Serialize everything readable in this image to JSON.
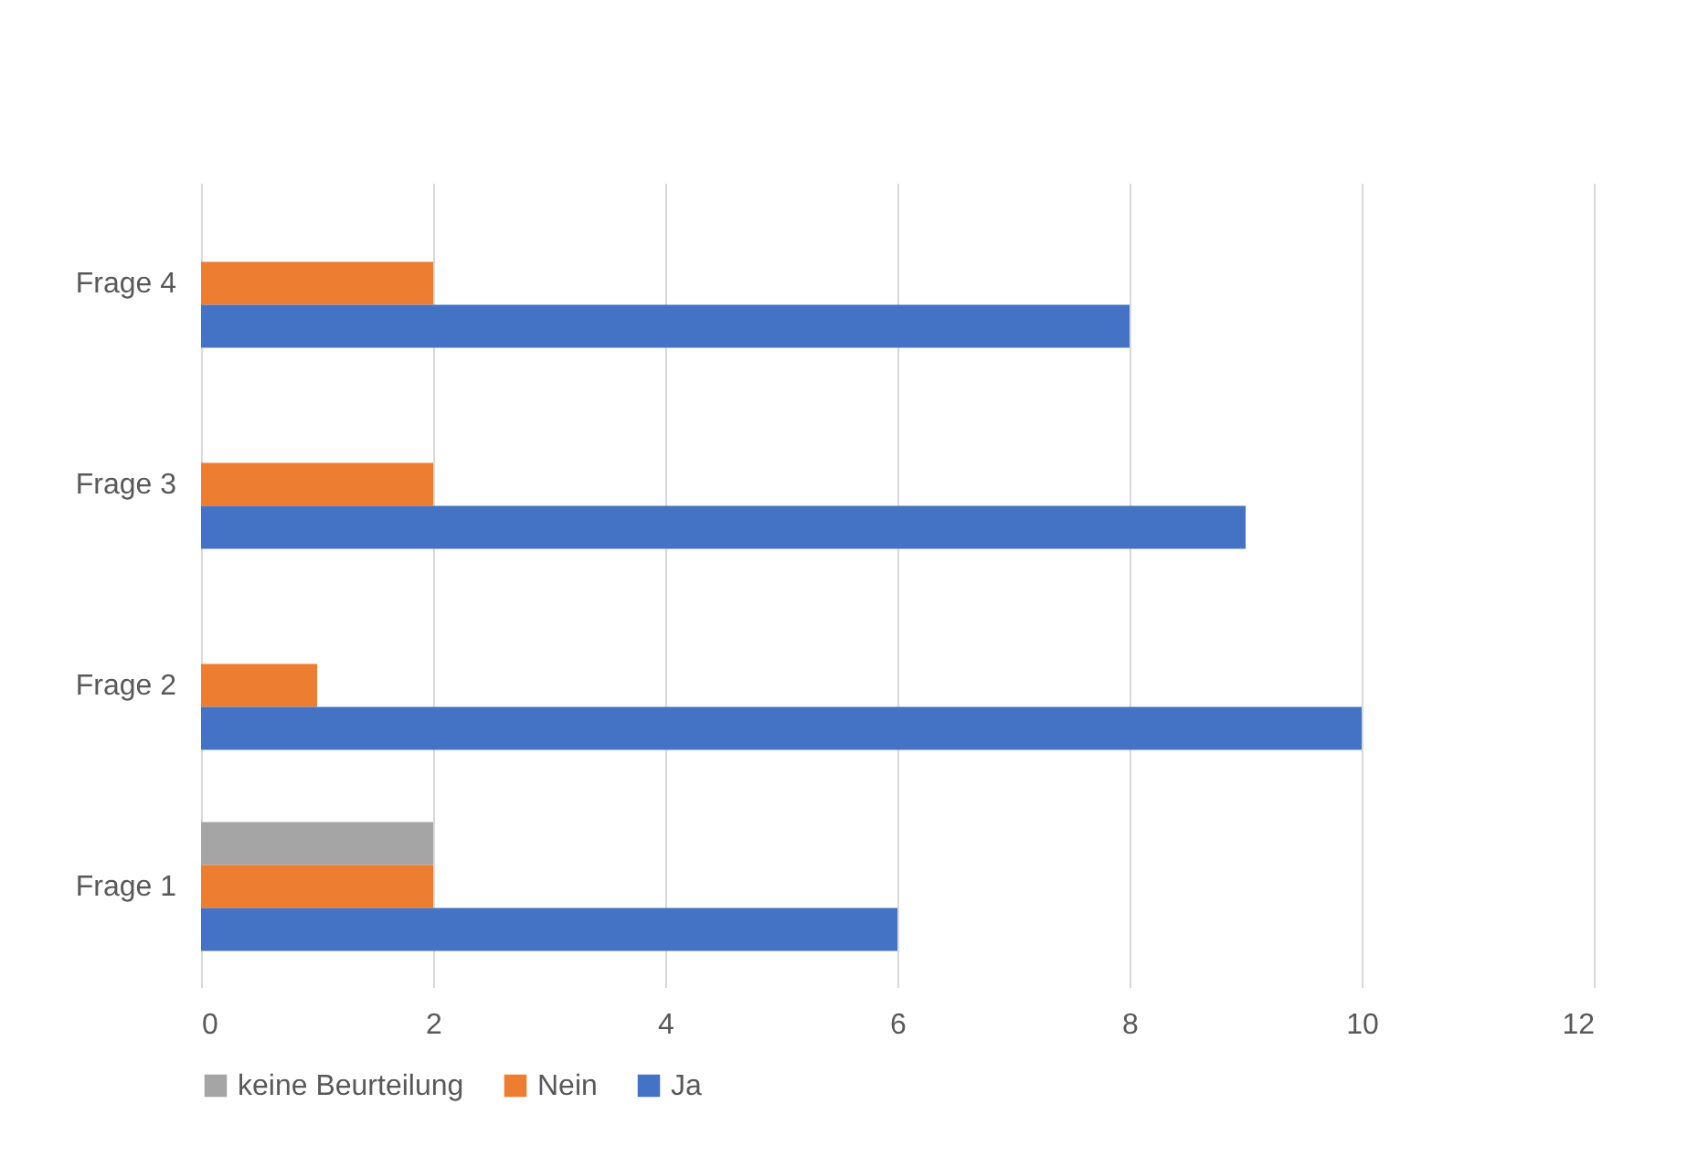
{
  "chart_data": {
    "type": "bar",
    "orientation": "horizontal",
    "categories": [
      "Frage 4",
      "Frage 3",
      "Frage 2",
      "Frage 1"
    ],
    "series": [
      {
        "name": "keine Beurteilung",
        "color": "#a5a5a5",
        "values": [
          null,
          null,
          null,
          2
        ]
      },
      {
        "name": "Nein",
        "color": "#ed7d31",
        "values": [
          2,
          2,
          1,
          2
        ]
      },
      {
        "name": "Ja",
        "color": "#4472c4",
        "values": [
          8,
          9,
          10,
          6
        ]
      }
    ],
    "xlim": [
      0,
      12
    ],
    "xticks": [
      0,
      2,
      4,
      6,
      8,
      10,
      12
    ],
    "grid": "x",
    "legend": "bottom"
  }
}
